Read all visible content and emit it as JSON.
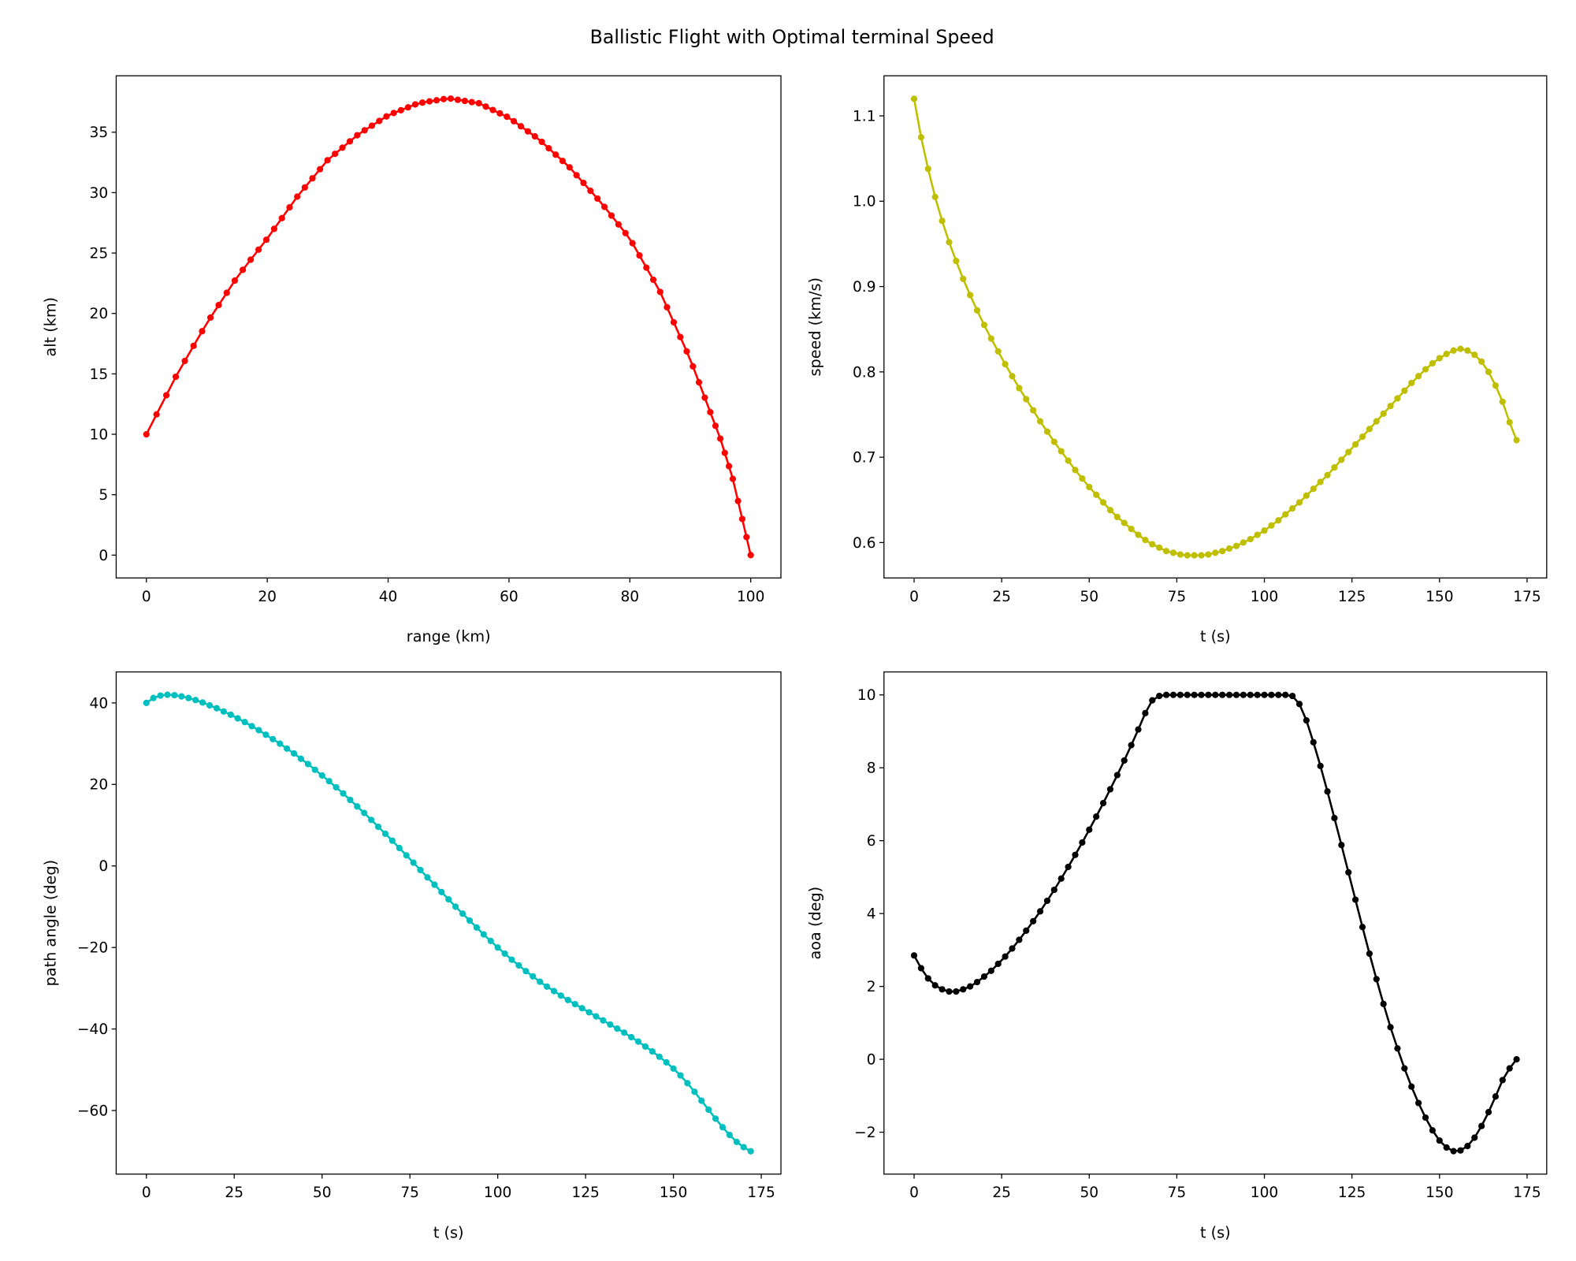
{
  "title": "Ballistic Flight with Optimal terminal Speed",
  "chart_data": [
    {
      "type": "line",
      "panel": "top-left",
      "xlabel": "range (km)",
      "ylabel": "alt (km)",
      "xlim": [
        -5,
        105
      ],
      "ylim": [
        -1.89,
        39.67
      ],
      "xticks": [
        0,
        20,
        40,
        60,
        80,
        100
      ],
      "xtick_labels": [
        "0",
        "20",
        "40",
        "60",
        "80",
        "100"
      ],
      "yticks": [
        0,
        5,
        10,
        15,
        20,
        25,
        30,
        35
      ],
      "ytick_labels": [
        "0",
        "5",
        "10",
        "15",
        "20",
        "25",
        "30",
        "35"
      ],
      "grid": false,
      "color": "#ff0000",
      "marker": "dot",
      "x": [
        0,
        1.68,
        3.3,
        4.86,
        6.36,
        7.81,
        9.22,
        10.6,
        11.96,
        13.3,
        14.63,
        15.95,
        17.26,
        18.56,
        19.85,
        21.14,
        22.42,
        23.69,
        24.96,
        26.22,
        27.48,
        28.73,
        29.97,
        31.21,
        32.44,
        33.67,
        34.89,
        36.11,
        37.32,
        38.53,
        39.73,
        40.93,
        42.12,
        43.31,
        44.49,
        45.67,
        46.85,
        48.02,
        49.19,
        50.36,
        51.53,
        52.69,
        53.85,
        55.01,
        56.17,
        57.33,
        58.49,
        59.65,
        60.81,
        61.97,
        63.13,
        64.28,
        65.43,
        66.58,
        67.73,
        68.88,
        70.03,
        71.18,
        72.33,
        73.48,
        74.64,
        75.8,
        76.96,
        78.12,
        79.28,
        80.44,
        81.59,
        82.74,
        83.88,
        85.02,
        86.15,
        87.26,
        88.35,
        89.41,
        90.44,
        91.44,
        92.4,
        93.31,
        94.17,
        94.97,
        95.71,
        96.4,
        97.04,
        97.9,
        98.6,
        99.3,
        100.0
      ],
      "y": [
        10.0,
        11.65,
        13.23,
        14.76,
        16.07,
        17.32,
        18.53,
        19.66,
        20.69,
        21.71,
        22.72,
        23.61,
        24.45,
        25.28,
        26.1,
        27.0,
        27.89,
        28.78,
        29.67,
        30.43,
        31.19,
        31.94,
        32.68,
        33.21,
        33.72,
        34.24,
        34.75,
        35.16,
        35.54,
        35.93,
        36.31,
        36.59,
        36.82,
        37.06,
        37.3,
        37.45,
        37.55,
        37.64,
        37.74,
        37.78,
        37.68,
        37.59,
        37.49,
        37.4,
        37.12,
        36.84,
        36.56,
        36.28,
        35.91,
        35.49,
        35.07,
        34.66,
        34.2,
        33.67,
        33.14,
        32.62,
        32.09,
        31.44,
        30.8,
        30.15,
        29.51,
        28.82,
        28.1,
        27.37,
        26.65,
        25.81,
        24.8,
        23.79,
        22.79,
        21.78,
        20.51,
        19.27,
        18.05,
        16.86,
        15.62,
        14.3,
        13.03,
        11.83,
        10.7,
        9.64,
        8.46,
        7.36,
        6.31,
        4.48,
        2.99,
        1.49,
        0
      ]
    },
    {
      "type": "line",
      "panel": "top-right",
      "xlabel": "t (s)",
      "ylabel": "speed (km/s)",
      "xlim": [
        -8.6,
        180.6
      ],
      "ylim": [
        0.5585,
        1.147
      ],
      "xticks": [
        0,
        25,
        50,
        75,
        100,
        125,
        150,
        175
      ],
      "xtick_labels": [
        "0",
        "25",
        "50",
        "75",
        "100",
        "125",
        "150",
        "175"
      ],
      "yticks": [
        0.6,
        0.7,
        0.8,
        0.9,
        1.0,
        1.1
      ],
      "ytick_labels": [
        "0.6",
        "0.7",
        "0.8",
        "0.9",
        "1.0",
        "1.1"
      ],
      "grid": false,
      "color": "#bfbf00",
      "marker": "dot",
      "x": [
        0,
        2,
        4,
        6,
        8,
        10,
        12,
        14,
        16,
        18,
        20,
        22,
        24,
        26,
        28,
        30,
        32,
        34,
        36,
        38,
        40,
        42,
        44,
        46,
        48,
        50,
        52,
        54,
        56,
        58,
        60,
        62,
        64,
        66,
        68,
        70,
        72,
        74,
        76,
        78,
        80,
        82,
        84,
        86,
        88,
        90,
        92,
        94,
        96,
        98,
        100,
        102,
        104,
        106,
        108,
        110,
        112,
        114,
        116,
        118,
        120,
        122,
        124,
        126,
        128,
        130,
        132,
        134,
        136,
        138,
        140,
        142,
        144,
        146,
        148,
        150,
        152,
        154,
        156,
        158,
        160,
        162,
        164,
        166,
        168,
        170,
        172
      ],
      "y": [
        1.12,
        1.075,
        1.038,
        1.005,
        0.977,
        0.952,
        0.93,
        0.909,
        0.89,
        0.872,
        0.855,
        0.839,
        0.824,
        0.809,
        0.795,
        0.781,
        0.768,
        0.755,
        0.742,
        0.73,
        0.718,
        0.707,
        0.696,
        0.685,
        0.675,
        0.665,
        0.656,
        0.647,
        0.638,
        0.63,
        0.623,
        0.616,
        0.609,
        0.603,
        0.598,
        0.594,
        0.59,
        0.588,
        0.586,
        0.585,
        0.585,
        0.585,
        0.586,
        0.588,
        0.59,
        0.593,
        0.596,
        0.6,
        0.604,
        0.609,
        0.614,
        0.62,
        0.626,
        0.633,
        0.64,
        0.647,
        0.655,
        0.663,
        0.671,
        0.679,
        0.688,
        0.697,
        0.706,
        0.715,
        0.724,
        0.733,
        0.742,
        0.751,
        0.76,
        0.769,
        0.778,
        0.787,
        0.795,
        0.803,
        0.81,
        0.816,
        0.821,
        0.825,
        0.827,
        0.825,
        0.82,
        0.812,
        0.8,
        0.784,
        0.765,
        0.741,
        0.72
      ]
    },
    {
      "type": "line",
      "panel": "bottom-left",
      "xlabel": "t (s)",
      "ylabel": "path angle (deg)",
      "xlim": [
        -8.6,
        180.6
      ],
      "ylim": [
        -75.6,
        47.6
      ],
      "xticks": [
        0,
        25,
        50,
        75,
        100,
        125,
        150,
        175
      ],
      "xtick_labels": [
        "0",
        "25",
        "50",
        "75",
        "100",
        "125",
        "150",
        "175"
      ],
      "yticks": [
        -60,
        -40,
        -20,
        0,
        20,
        40
      ],
      "ytick_labels": [
        "−60",
        "−40",
        "−20",
        "0",
        "20",
        "40"
      ],
      "grid": false,
      "color": "#00bfbf",
      "marker": "dot",
      "x": [
        0,
        2,
        4,
        6,
        8,
        10,
        12,
        14,
        16,
        18,
        20,
        22,
        24,
        26,
        28,
        30,
        32,
        34,
        36,
        38,
        40,
        42,
        44,
        46,
        48,
        50,
        52,
        54,
        56,
        58,
        60,
        62,
        64,
        66,
        68,
        70,
        72,
        74,
        76,
        78,
        80,
        82,
        84,
        86,
        88,
        90,
        92,
        94,
        96,
        98,
        100,
        102,
        104,
        106,
        108,
        110,
        112,
        114,
        116,
        118,
        120,
        122,
        124,
        126,
        128,
        130,
        132,
        134,
        136,
        138,
        140,
        142,
        144,
        146,
        148,
        150,
        152,
        154,
        156,
        158,
        160,
        162,
        164,
        166,
        168,
        170,
        172
      ],
      "y": [
        40.0,
        41.2,
        41.8,
        42.0,
        41.9,
        41.6,
        41.2,
        40.7,
        40.1,
        39.4,
        38.7,
        37.9,
        37.1,
        36.2,
        35.3,
        34.3,
        33.3,
        32.2,
        31.1,
        30.0,
        28.8,
        27.6,
        26.3,
        25.0,
        23.6,
        22.2,
        20.8,
        19.3,
        17.8,
        16.2,
        14.6,
        13.0,
        11.3,
        9.6,
        7.9,
        6.2,
        4.4,
        2.6,
        0.8,
        -1.0,
        -2.8,
        -4.6,
        -6.4,
        -8.2,
        -10.0,
        -11.7,
        -13.4,
        -15.1,
        -16.8,
        -18.4,
        -20.0,
        -21.5,
        -23.0,
        -24.4,
        -25.8,
        -27.1,
        -28.4,
        -29.6,
        -30.7,
        -31.8,
        -32.9,
        -33.9,
        -34.9,
        -35.9,
        -36.9,
        -37.9,
        -38.9,
        -39.9,
        -40.9,
        -42.0,
        -43.1,
        -44.3,
        -45.5,
        -46.8,
        -48.2,
        -49.7,
        -51.4,
        -53.3,
        -55.4,
        -57.6,
        -59.8,
        -62.0,
        -64.1,
        -66.0,
        -67.7,
        -69.0,
        -70.0
      ]
    },
    {
      "type": "line",
      "panel": "bottom-right",
      "xlabel": "t (s)",
      "ylabel": "aoa (deg)",
      "xlim": [
        -8.6,
        180.6
      ],
      "ylim": [
        -3.15,
        10.63
      ],
      "xticks": [
        0,
        25,
        50,
        75,
        100,
        125,
        150,
        175
      ],
      "xtick_labels": [
        "0",
        "25",
        "50",
        "75",
        "100",
        "125",
        "150",
        "175"
      ],
      "yticks": [
        -2,
        0,
        2,
        4,
        6,
        8,
        10
      ],
      "ytick_labels": [
        "−2",
        "0",
        "2",
        "4",
        "6",
        "8",
        "10"
      ],
      "grid": false,
      "color": "#000000",
      "marker": "dot",
      "x": [
        0,
        2,
        4,
        6,
        8,
        10,
        12,
        14,
        16,
        18,
        20,
        22,
        24,
        26,
        28,
        30,
        32,
        34,
        36,
        38,
        40,
        42,
        44,
        46,
        48,
        50,
        52,
        54,
        56,
        58,
        60,
        62,
        64,
        66,
        68,
        70,
        72,
        74,
        76,
        78,
        80,
        82,
        84,
        86,
        88,
        90,
        92,
        94,
        96,
        98,
        100,
        102,
        104,
        106,
        108,
        110,
        112,
        114,
        116,
        118,
        120,
        122,
        124,
        126,
        128,
        130,
        132,
        134,
        136,
        138,
        140,
        142,
        144,
        146,
        148,
        150,
        152,
        154,
        156,
        158,
        160,
        162,
        164,
        166,
        168,
        170,
        172
      ],
      "y": [
        2.85,
        2.5,
        2.22,
        2.03,
        1.92,
        1.86,
        1.86,
        1.92,
        2.0,
        2.12,
        2.27,
        2.43,
        2.62,
        2.82,
        3.04,
        3.28,
        3.53,
        3.79,
        4.06,
        4.35,
        4.65,
        4.96,
        5.28,
        5.61,
        5.95,
        6.3,
        6.66,
        7.03,
        7.41,
        7.8,
        8.2,
        8.62,
        9.05,
        9.5,
        9.85,
        9.97,
        10.0,
        10.0,
        10.0,
        10.0,
        10.0,
        10.0,
        10.0,
        10.0,
        10.0,
        10.0,
        10.0,
        10.0,
        10.0,
        10.0,
        10.0,
        10.0,
        10.0,
        10.0,
        9.97,
        9.75,
        9.3,
        8.7,
        8.05,
        7.35,
        6.62,
        5.88,
        5.13,
        4.38,
        3.63,
        2.9,
        2.2,
        1.52,
        0.88,
        0.3,
        -0.25,
        -0.75,
        -1.2,
        -1.6,
        -1.95,
        -2.23,
        -2.42,
        -2.52,
        -2.5,
        -2.38,
        -2.15,
        -1.83,
        -1.45,
        -1.02,
        -0.57,
        -0.25,
        0.0
      ]
    }
  ]
}
